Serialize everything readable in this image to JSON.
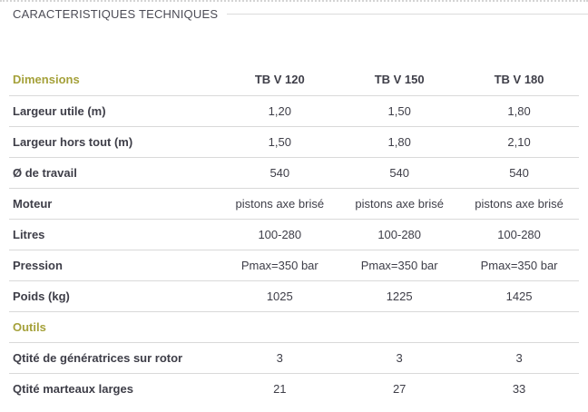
{
  "page": {
    "title": "CARACTERISTIQUES TECHNIQUES"
  },
  "table": {
    "columns": [
      "TB V 120",
      "TB V 150",
      "TB V 180"
    ],
    "sections": [
      {
        "name": "Dimensions",
        "rows": [
          {
            "label": "Largeur utile (m)",
            "values": [
              "1,20",
              "1,50",
              "1,80"
            ]
          },
          {
            "label": "Largeur hors tout (m)",
            "values": [
              "1,50",
              "1,80",
              "2,10"
            ]
          },
          {
            "label": "Ø de travail",
            "values": [
              "540",
              "540",
              "540"
            ]
          },
          {
            "label": "Moteur",
            "values": [
              "pistons axe brisé",
              "pistons axe brisé",
              "pistons axe brisé"
            ]
          },
          {
            "label": "Litres",
            "values": [
              "100-280",
              "100-280",
              "100-280"
            ]
          },
          {
            "label": "Pression",
            "values": [
              "Pmax=350 bar",
              "Pmax=350 bar",
              "Pmax=350 bar"
            ]
          },
          {
            "label": "Poids (kg)",
            "values": [
              "1025",
              "1225",
              "1425"
            ]
          }
        ]
      },
      {
        "name": "Outils",
        "rows": [
          {
            "label": "Qtité de génératrices sur rotor",
            "values": [
              "3",
              "3",
              "3"
            ]
          },
          {
            "label": "Qtité marteaux larges",
            "values": [
              "21",
              "27",
              "33"
            ]
          }
        ]
      }
    ]
  },
  "colors": {
    "accent": "#a5a13a",
    "heading_text": "#4c4c56",
    "body_text": "#3e3e48",
    "divider": "#d9d9d9"
  }
}
